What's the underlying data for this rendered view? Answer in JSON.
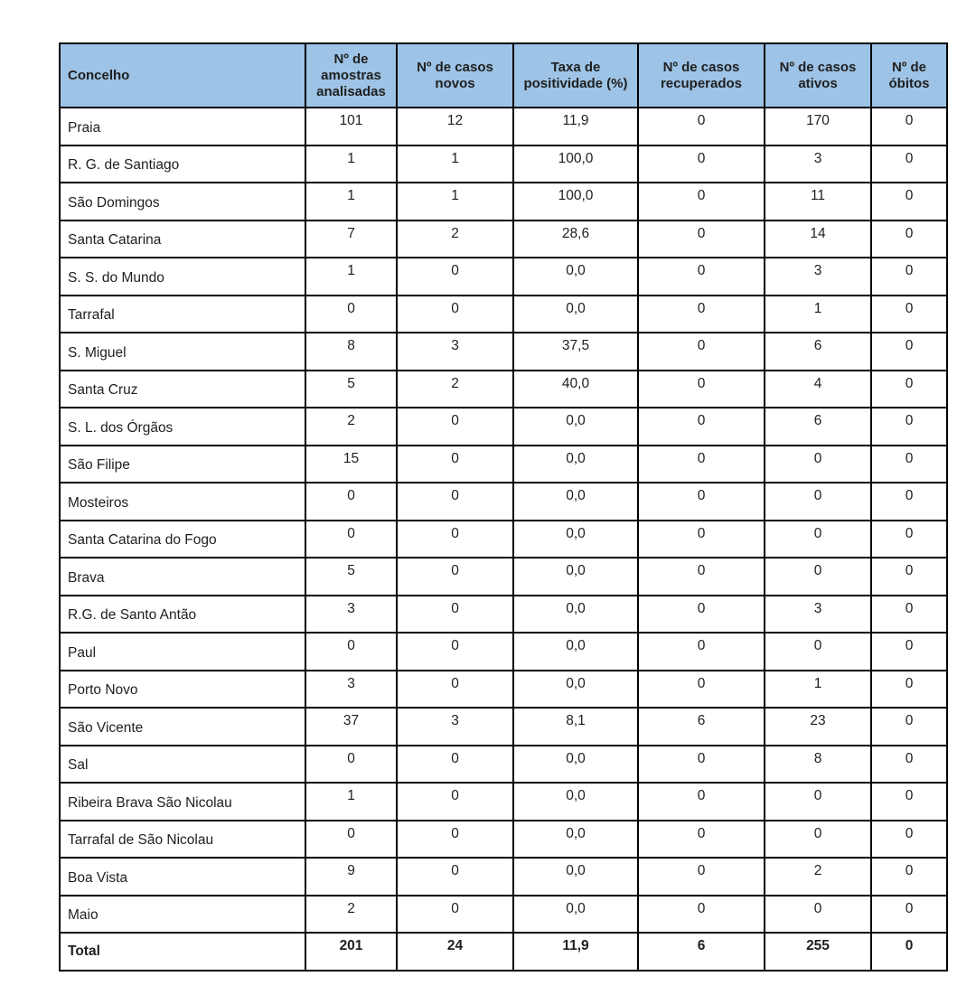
{
  "colors": {
    "page_bg": "#FFFFFF",
    "header_bg": "#9DC3E6",
    "border": "#000000",
    "text": "#1F1F1F"
  },
  "table": {
    "columns": [
      "Concelho",
      "Nº de amostras analisadas",
      "Nº de casos novos",
      "Taxa de positividade (%)",
      "Nº de casos recuperados",
      "Nº de casos ativos",
      "Nº de óbitos"
    ],
    "rows": [
      [
        "Praia",
        "101",
        "12",
        "11,9",
        "0",
        "170",
        "0"
      ],
      [
        "R. G. de Santiago",
        "1",
        "1",
        "100,0",
        "0",
        "3",
        "0"
      ],
      [
        "São Domingos",
        "1",
        "1",
        "100,0",
        "0",
        "11",
        "0"
      ],
      [
        "Santa Catarina",
        "7",
        "2",
        "28,6",
        "0",
        "14",
        "0"
      ],
      [
        "S. S. do Mundo",
        "1",
        "0",
        "0,0",
        "0",
        "3",
        "0"
      ],
      [
        "Tarrafal",
        "0",
        "0",
        "0,0",
        "0",
        "1",
        "0"
      ],
      [
        "S. Miguel",
        "8",
        "3",
        "37,5",
        "0",
        "6",
        "0"
      ],
      [
        "Santa Cruz",
        "5",
        "2",
        "40,0",
        "0",
        "4",
        "0"
      ],
      [
        "S. L. dos Órgãos",
        "2",
        "0",
        "0,0",
        "0",
        "6",
        "0"
      ],
      [
        "São Filipe",
        "15",
        "0",
        "0,0",
        "0",
        "0",
        "0"
      ],
      [
        "Mosteiros",
        "0",
        "0",
        "0,0",
        "0",
        "0",
        "0"
      ],
      [
        "Santa Catarina do Fogo",
        "0",
        "0",
        "0,0",
        "0",
        "0",
        "0"
      ],
      [
        "Brava",
        "5",
        "0",
        "0,0",
        "0",
        "0",
        "0"
      ],
      [
        "R.G. de Santo Antão",
        "3",
        "0",
        "0,0",
        "0",
        "3",
        "0"
      ],
      [
        "Paul",
        "0",
        "0",
        "0,0",
        "0",
        "0",
        "0"
      ],
      [
        "Porto Novo",
        "3",
        "0",
        "0,0",
        "0",
        "1",
        "0"
      ],
      [
        "São Vicente",
        "37",
        "3",
        "8,1",
        "6",
        "23",
        "0"
      ],
      [
        "Sal",
        "0",
        "0",
        "0,0",
        "0",
        "8",
        "0"
      ],
      [
        "Ribeira Brava São Nicolau",
        "1",
        "0",
        "0,0",
        "0",
        "0",
        "0"
      ],
      [
        "Tarrafal de São Nicolau",
        "0",
        "0",
        "0,0",
        "0",
        "0",
        "0"
      ],
      [
        "Boa Vista",
        "9",
        "0",
        "0,0",
        "0",
        "2",
        "0"
      ],
      [
        "Maio",
        "2",
        "0",
        "0,0",
        "0",
        "0",
        "0"
      ]
    ],
    "total_row": [
      "Total",
      "201",
      "24",
      "11,9",
      "6",
      "255",
      "0"
    ]
  }
}
